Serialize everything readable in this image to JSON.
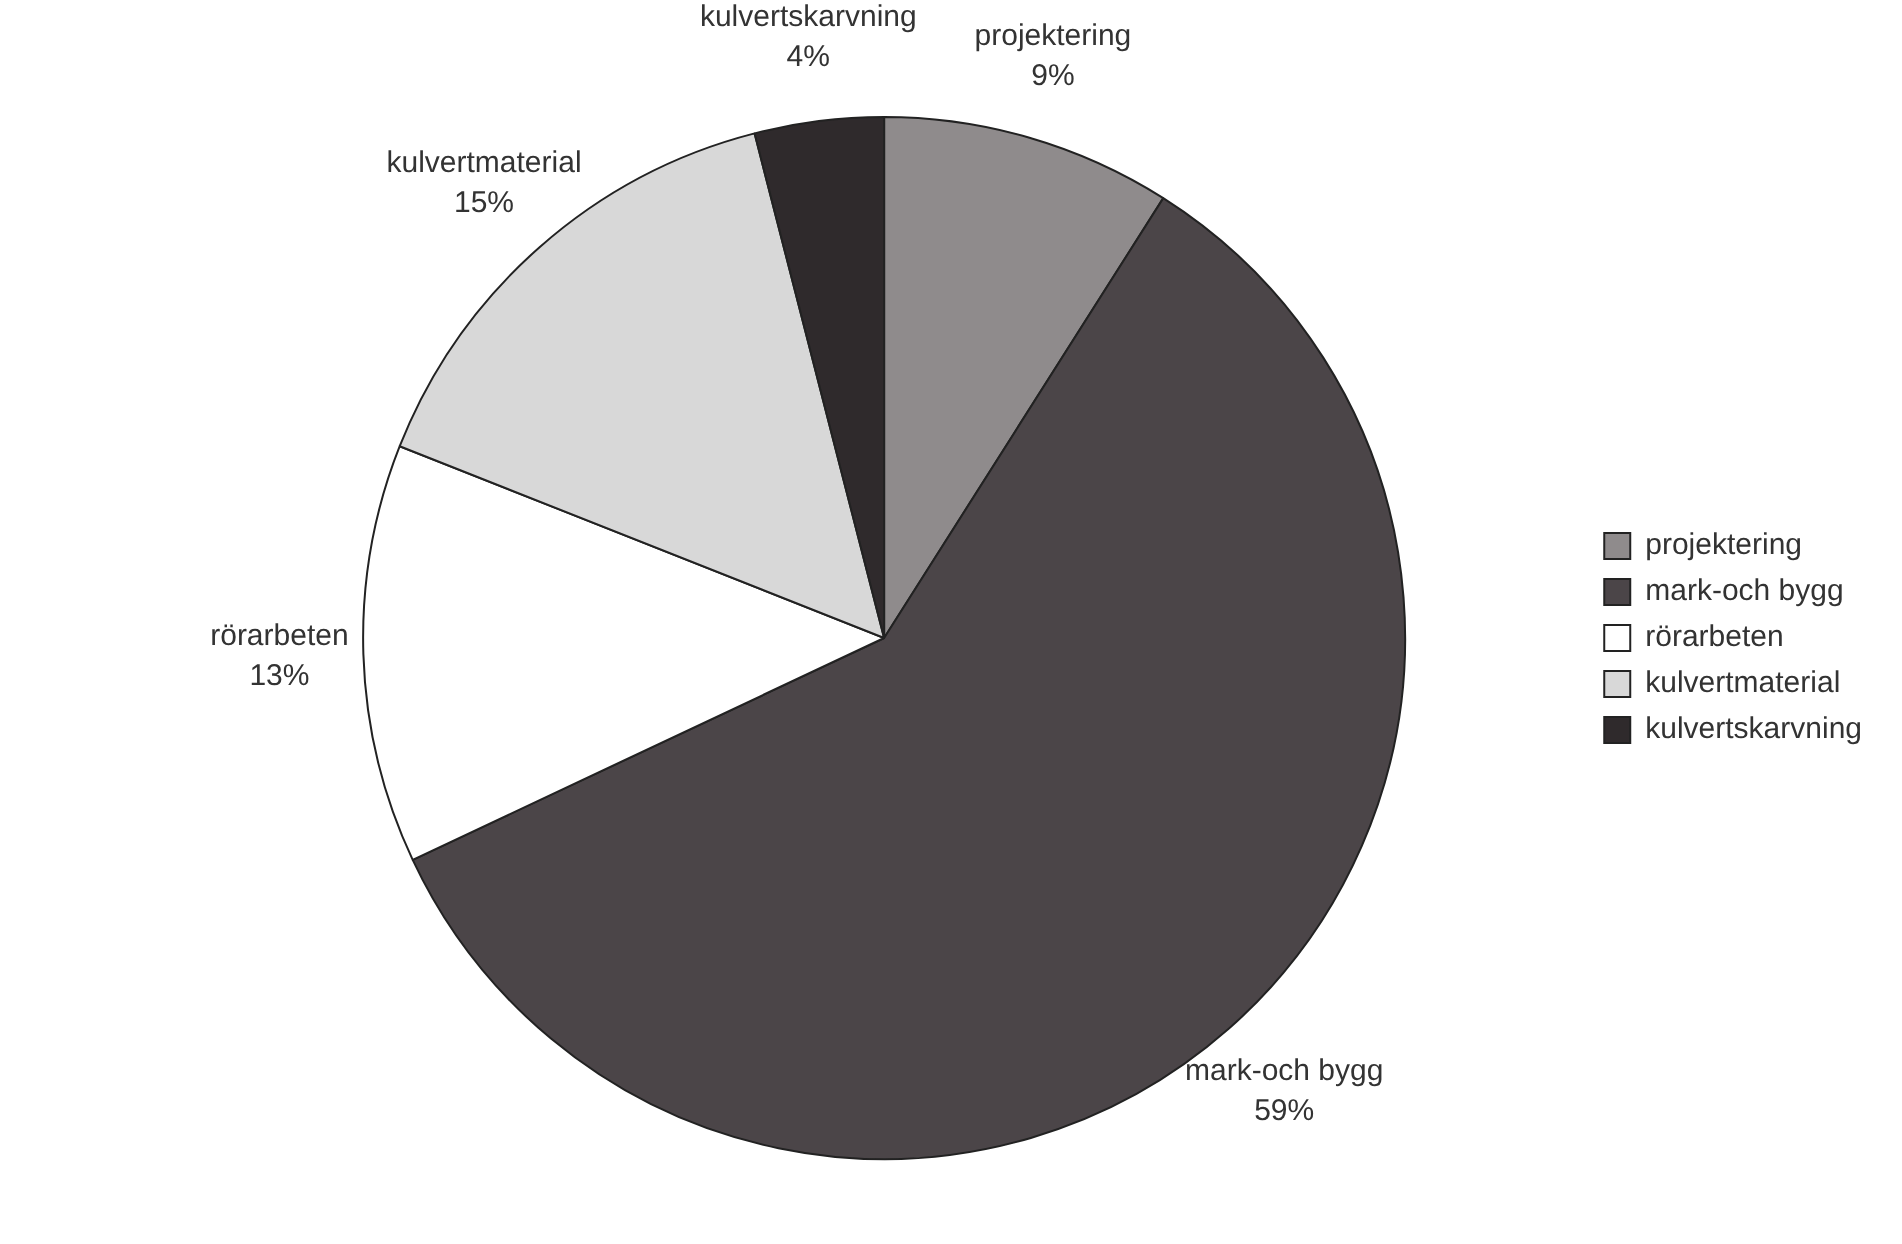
{
  "chart_data": {
    "type": "pie",
    "categories": [
      "projektering",
      "mark-och bygg",
      "rörarbeten",
      "kulvertmaterial",
      "kulvertskarvning"
    ],
    "values": [
      9,
      59,
      13,
      15,
      4
    ],
    "colors": [
      "#8f8b8c",
      "#4b4548",
      "#ffffff",
      "#d8d8d8",
      "#2f2a2c"
    ],
    "value_labels": [
      "9%",
      "59%",
      "13%",
      "15%",
      "4%"
    ],
    "legend": "right"
  }
}
